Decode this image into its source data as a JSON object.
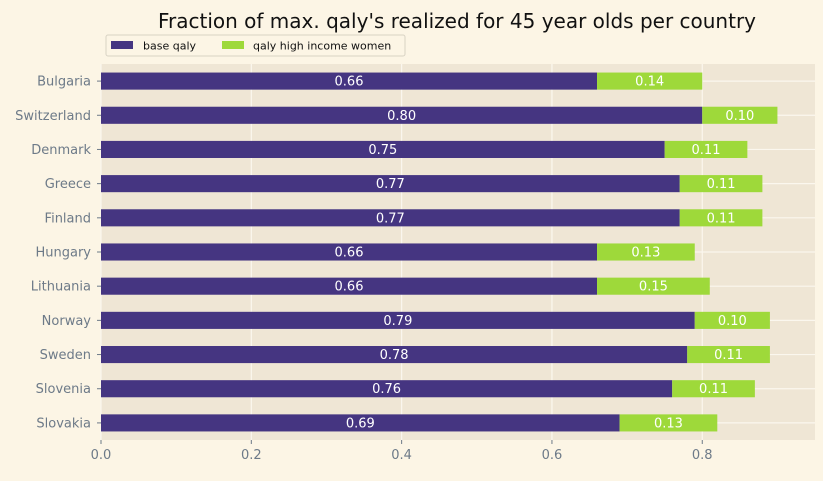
{
  "chart_data": {
    "type": "bar",
    "orientation": "horizontal",
    "stacked": true,
    "title": "Fraction of max. qaly's realized for 45 year olds per country",
    "xlabel": "",
    "ylabel": "",
    "xlim": [
      0,
      0.95
    ],
    "x_ticks": [
      "0.0",
      "0.2",
      "0.4",
      "0.6",
      "0.8"
    ],
    "grid": true,
    "legend_placement": "top-left",
    "categories": [
      "Bulgaria",
      "Switzerland",
      "Denmark",
      "Greece",
      "Finland",
      "Hungary",
      "Lithuania",
      "Norway",
      "Sweden",
      "Slovenia",
      "Slovakia"
    ],
    "series": [
      {
        "name": "base qaly",
        "color": "#453581",
        "values": [
          0.66,
          0.8,
          0.75,
          0.77,
          0.77,
          0.66,
          0.66,
          0.79,
          0.78,
          0.76,
          0.69
        ],
        "labels": [
          "0.66",
          "0.80",
          "0.75",
          "0.77",
          "0.77",
          "0.66",
          "0.66",
          "0.79",
          "0.78",
          "0.76",
          "0.69"
        ]
      },
      {
        "name": "qaly high income women",
        "color": "#9ed93a",
        "values": [
          0.14,
          0.1,
          0.11,
          0.11,
          0.11,
          0.13,
          0.15,
          0.1,
          0.11,
          0.11,
          0.13
        ],
        "labels": [
          "0.14",
          "0.10",
          "0.11",
          "0.11",
          "0.11",
          "0.13",
          "0.15",
          "0.10",
          "0.11",
          "0.11",
          "0.13"
        ]
      }
    ],
    "colors": {
      "page_background": "#fcf5e5",
      "plot_background": "#efe6d5",
      "grid": "#fbf7ee",
      "tick_text": "#6d7a88"
    }
  }
}
